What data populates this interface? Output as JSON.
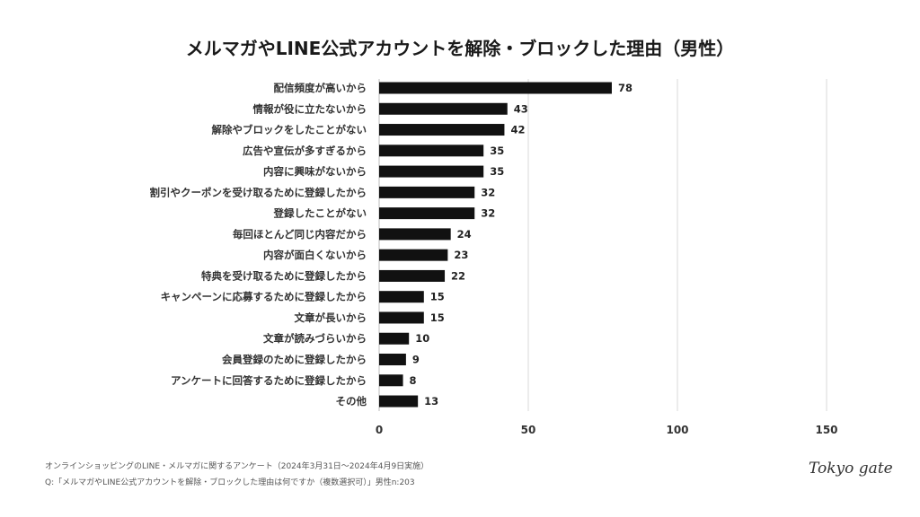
{
  "chart_data": {
    "type": "bar",
    "orientation": "horizontal",
    "title": "メルマガやLINE公式アカウントを解除・ブロックした理由（男性）",
    "categories": [
      "配信頻度が高いから",
      "情報が役に立たないから",
      "解除やブロックをしたことがない",
      "広告や宣伝が多すぎるから",
      "内容に興味がないから",
      "割引やクーポンを受け取るために登録したから",
      "登録したことがない",
      "毎回ほとんど同じ内容だから",
      "内容が面白くないから",
      "特典を受け取るために登録したから",
      "キャンペーンに応募するために登録したから",
      "文章が長いから",
      "文章が読みづらいから",
      "会員登録のために登録したから",
      "アンケートに回答するために登録したから",
      "その他"
    ],
    "values": [
      78,
      43,
      42,
      35,
      35,
      32,
      32,
      24,
      23,
      22,
      15,
      15,
      10,
      9,
      8,
      13
    ],
    "xlim": [
      0,
      150
    ],
    "xticks": [
      0,
      50,
      100,
      150
    ],
    "grid": true,
    "bar_color": "#111111",
    "xlabel": "",
    "ylabel": ""
  },
  "footer": {
    "source": "オンラインショッピングのLINE・メルマガに関するアンケート（2024年3月31日〜2024年4月9日実施）",
    "question": "Q:「メルマガやLINE公式アカウントを解除・ブロックした理由は何ですか（複数選択可）」男性n:203"
  },
  "logo": "Tokyo gate"
}
